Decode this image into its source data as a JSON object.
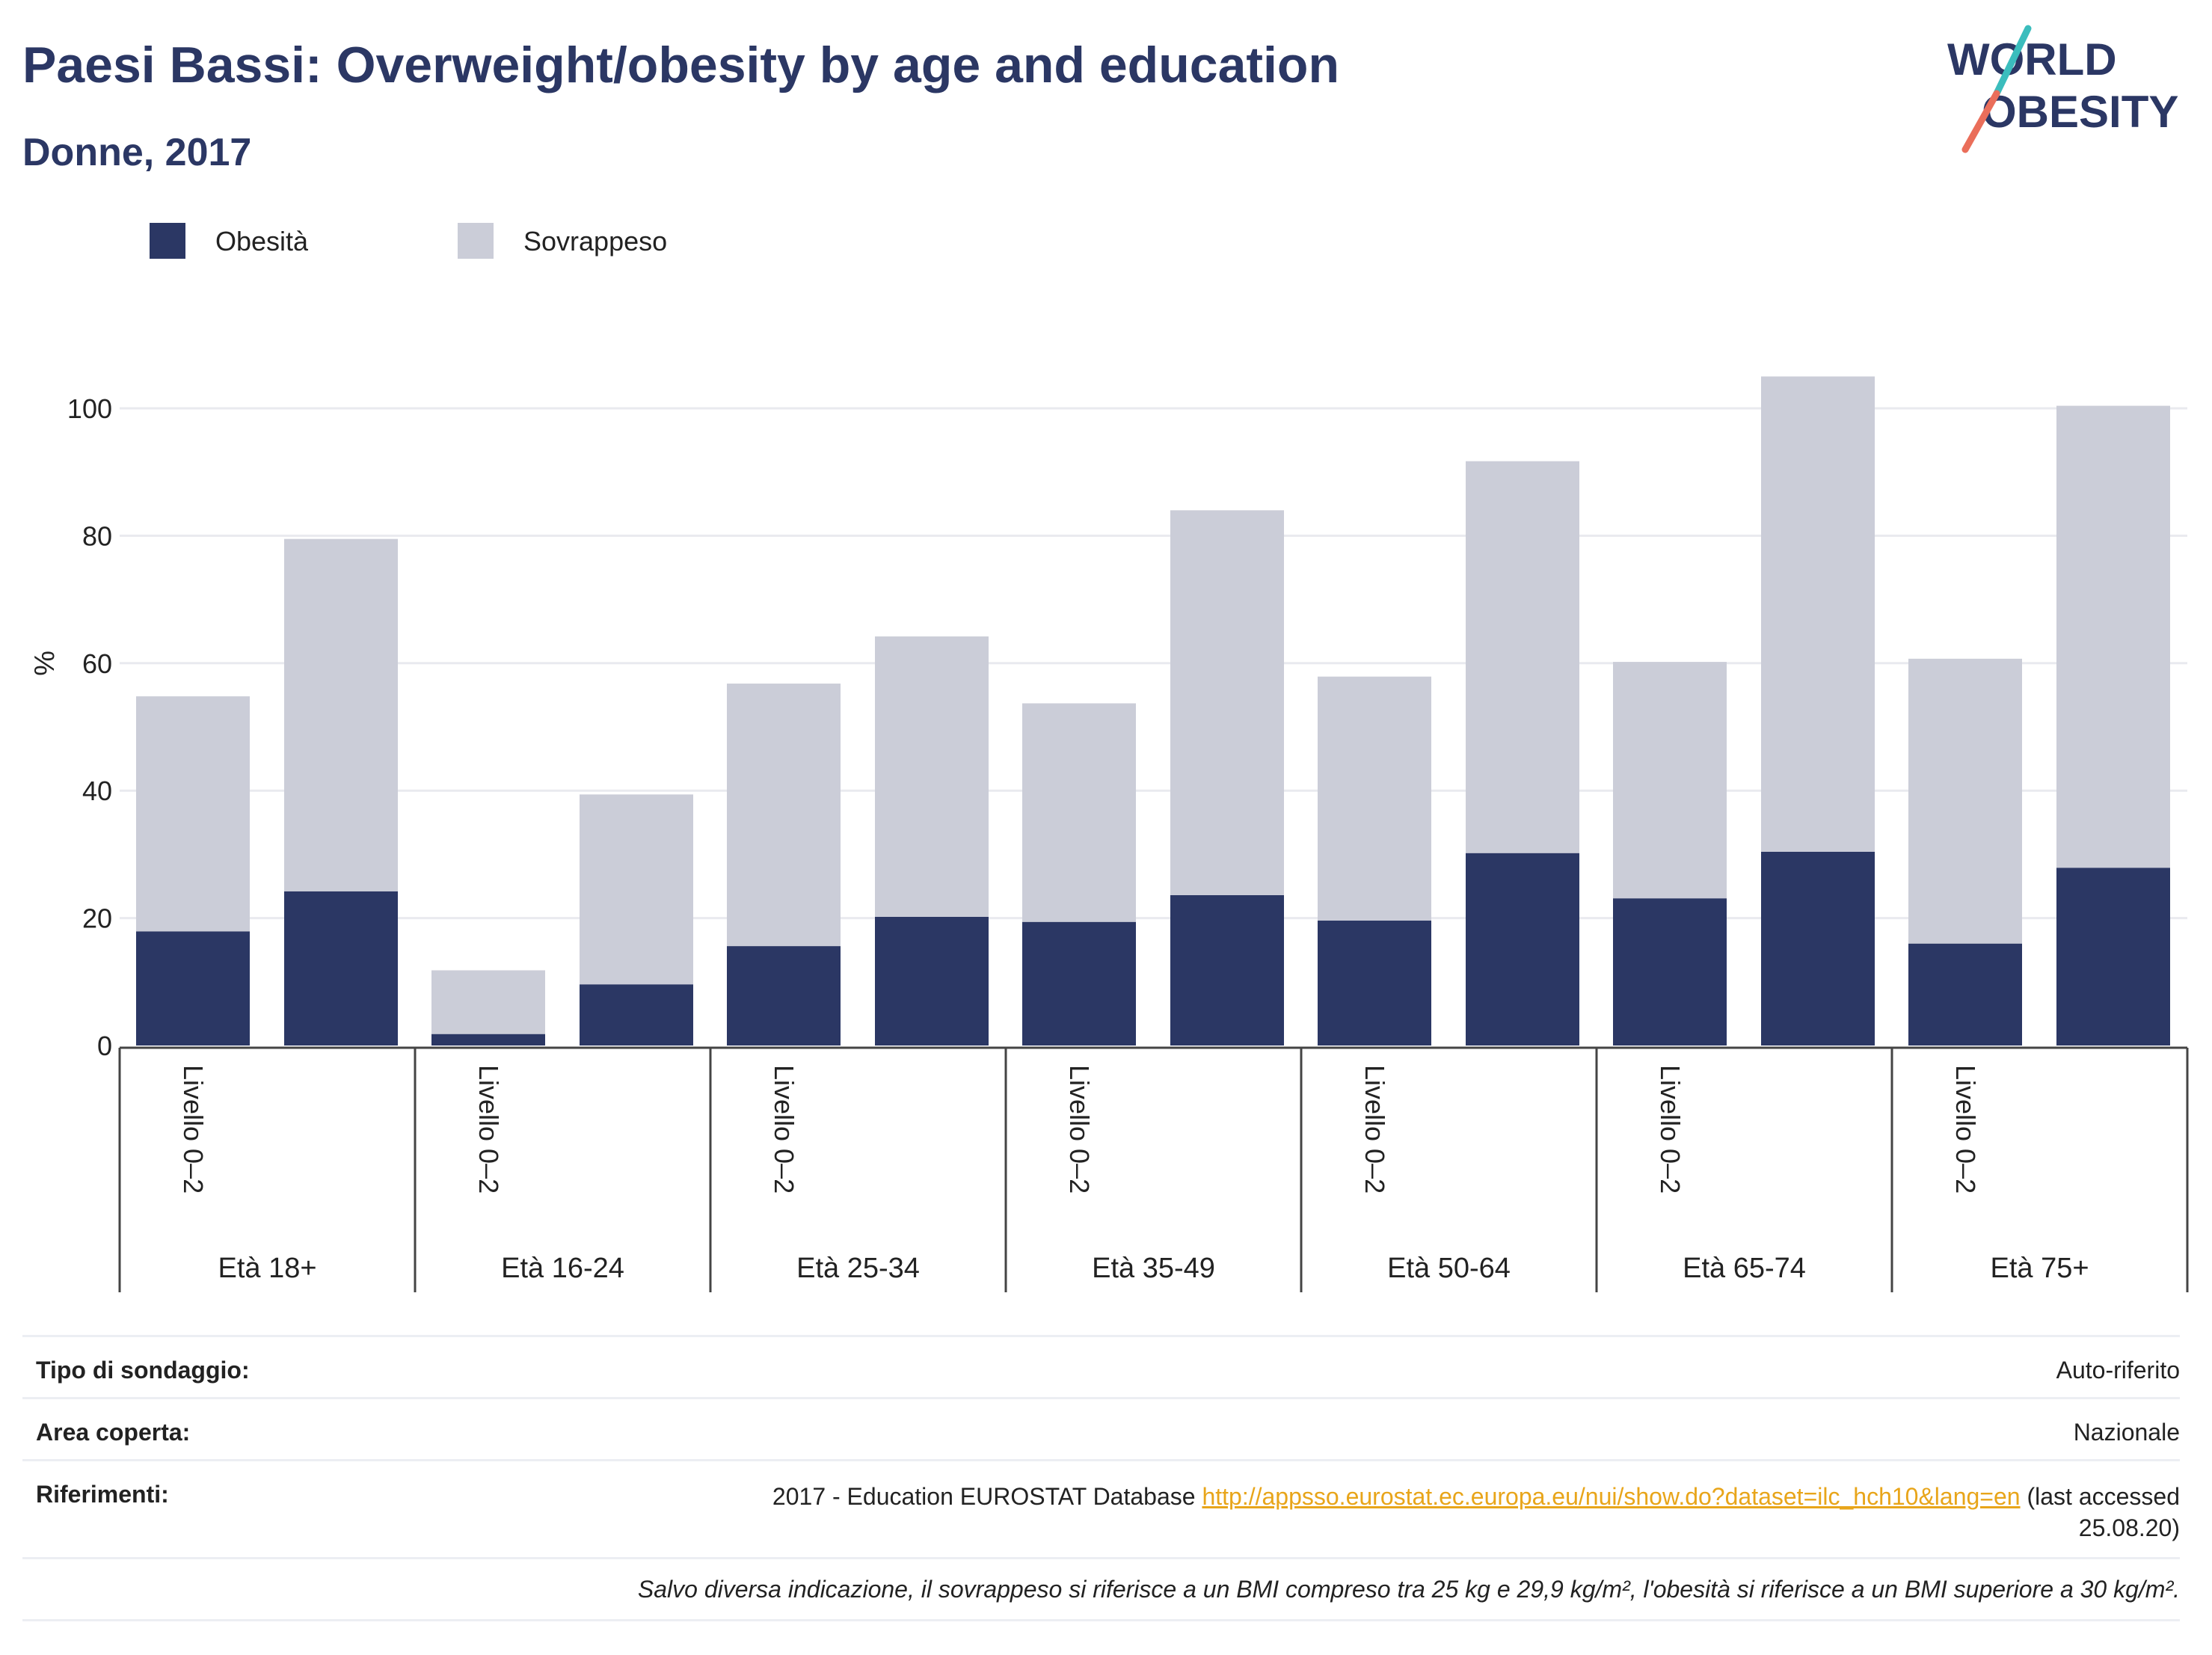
{
  "title": "Paesi Bassi: Overweight/obesity by age and education",
  "subtitle": "Donne, 2017",
  "logo": {
    "line1": "WORLD",
    "line2": "OBESITY"
  },
  "colors": {
    "obesity": "#2b3764",
    "overweight": "#cbcdd8",
    "accent_orange": "#ea6e5a",
    "accent_teal": "#3bbdbd",
    "link": "#e8a51a"
  },
  "chart_data": {
    "type": "bar",
    "stacked": true,
    "ylabel": "%",
    "ylim": [
      0,
      105
    ],
    "yticks": [
      0,
      20,
      40,
      60,
      80,
      100
    ],
    "grid": true,
    "legend_position": "top-left",
    "groups": [
      "Età 18+",
      "Età 16-24",
      "Età 25-34",
      "Età 35-49",
      "Età 50-64",
      "Età 65-74",
      "Età 75+"
    ],
    "category_labels": [
      "Livello 0–2",
      ""
    ],
    "series": [
      {
        "name": "Obesità",
        "values": [
          17.9,
          24.2,
          1.8,
          9.6,
          15.6,
          20.2,
          19.4,
          23.6,
          19.6,
          30.2,
          23.1,
          30.4,
          16.0,
          27.9
        ]
      },
      {
        "name": "Sovrappeso",
        "values": [
          36.9,
          55.3,
          10.0,
          29.8,
          41.2,
          44.0,
          34.3,
          60.4,
          38.3,
          61.5,
          37.1,
          74.6,
          44.7,
          72.5
        ]
      }
    ]
  },
  "info": {
    "survey_label": "Tipo di sondaggio:",
    "survey_value": "Auto-riferito",
    "area_label": "Area coperta:",
    "area_value": "Nazionale",
    "refs_label": "Riferimenti:",
    "refs_text": "2017 - Education EUROSTAT Database",
    "refs_link": "http://appsso.eurostat.ec.europa.eu/nui/show.do?dataset=ilc_hch10&lang=en",
    "refs_suffix": "(last accessed",
    "refs_date": "25.08.20)",
    "note": "Salvo diversa indicazione, il sovrappeso si riferisce a un BMI compreso tra 25 kg e 29,9 kg/m², l'obesità si riferisce a un BMI superiore a 30 kg/m²."
  }
}
